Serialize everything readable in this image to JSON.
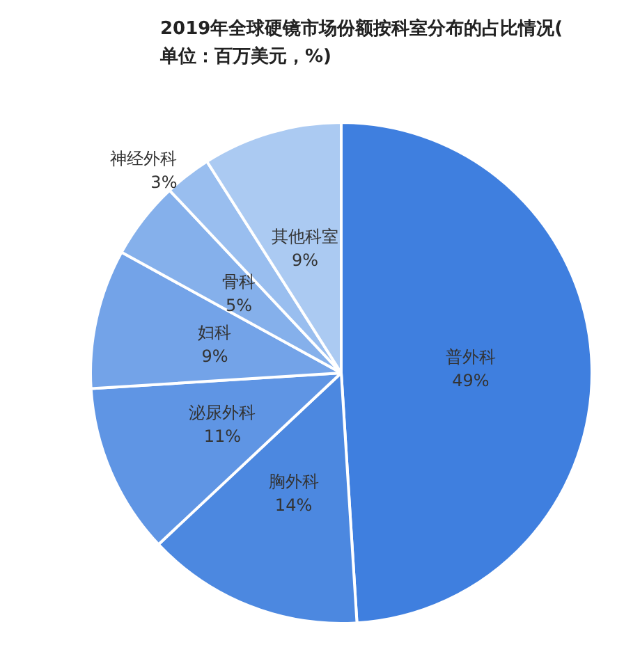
{
  "chart_data": {
    "type": "pie",
    "title": "2019年全球硬镜市场份额按科室分布的占比情况(单位：百万美元，%)",
    "categories": [
      "普外科",
      "胸外科",
      "泌尿外科",
      "妇科",
      "骨科",
      "神经外科",
      "其他科室"
    ],
    "values": [
      49,
      14,
      11,
      9,
      5,
      3,
      9
    ],
    "value_labels": [
      "49%",
      "14%",
      "11%",
      "9%",
      "5%",
      "3%",
      "9%"
    ],
    "colors": [
      "#3f7fdf",
      "#4c88e0",
      "#5f95e4",
      "#73a3e8",
      "#85b0eb",
      "#99beef",
      "#abcaf2"
    ],
    "legend": false
  }
}
